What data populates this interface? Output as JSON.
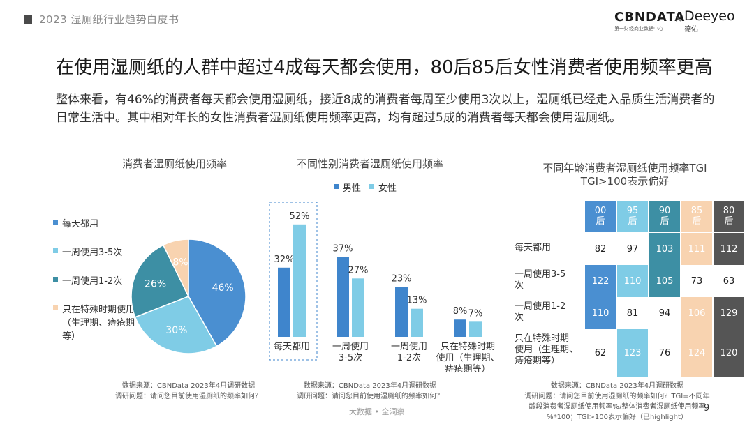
{
  "header": {
    "doc_title": "2023 湿厕纸行业趋势白皮书",
    "logo_cbn": "CBNDATA",
    "logo_cbn_sub": "第一财经商业数据中心",
    "logo_x": "×",
    "logo_dee": "Deeyeo",
    "logo_dee_sub": "德佑"
  },
  "title": "在使用湿厕纸的人群中超过4成每天都会使用，80后85后女性消费者使用频率更高",
  "description": "整体来看，有46%的消费者每天都会使用湿厕纸，接近8成的消费者每周至少使用3次以上，湿厕纸已经走入品质生活消费者的日常生活中。其中相对年长的女性消费者湿厕纸使用频率更高，均有超过5成的消费者每天都会使用湿厕纸。",
  "chart_data": [
    {
      "type": "pie",
      "title": "消费者湿厕纸使用频率",
      "categories": [
        "每天都用",
        "一周使用3-5次",
        "一周使用1-2次",
        "只在特殊时期使用（生理期、痔疮期等）"
      ],
      "values": [
        46,
        30,
        26,
        8
      ],
      "value_labels": [
        "46%",
        "30%",
        "26%",
        "8%"
      ],
      "colors": [
        "#4a8fd1",
        "#7fcce6",
        "#3d8fa4",
        "#f8d3b0"
      ]
    },
    {
      "type": "bar",
      "title": "不同性别消费者湿厕纸使用频率",
      "categories": [
        "每天都用",
        "一周使用3-5次",
        "一周使用1-2次",
        "只在特殊时期使用（生理期、痔疮期等）"
      ],
      "category_labels": [
        [
          "每天都用"
        ],
        [
          "一周使用",
          "3-5次"
        ],
        [
          "一周使用",
          "1-2次"
        ],
        [
          "只在特殊时期",
          "使用（生理期、",
          "痔疮期等）"
        ]
      ],
      "series": [
        {
          "name": "男性",
          "values": [
            32,
            37,
            23,
            8
          ],
          "labels": [
            "32%",
            "37%",
            "23%",
            "8%"
          ],
          "color": "#3f85cc"
        },
        {
          "name": "女性",
          "values": [
            52,
            27,
            13,
            7
          ],
          "labels": [
            "52%",
            "27%",
            "13%",
            "7%"
          ],
          "color": "#7fcce6"
        }
      ]
    },
    {
      "type": "heatmap",
      "title": "不同年龄消费者湿厕纸使用频率TGI",
      "subtitle": "TGI>100表示偏好",
      "columns": [
        "00后",
        "95后",
        "90后",
        "85后",
        "80后"
      ],
      "column_lines": [
        [
          "00",
          "后"
        ],
        [
          "95",
          "后"
        ],
        [
          "90",
          "后"
        ],
        [
          "85",
          "后"
        ],
        [
          "80",
          "后"
        ]
      ],
      "column_colors": [
        "#4a8fd1",
        "#7fcce6",
        "#3d8fa4",
        "#f8d3b0",
        "#555555"
      ],
      "rows": [
        "每天都用",
        "一周使用3-5次",
        "一周使用1-2次",
        "只在特殊时期使用（生理期、痔疮期等）"
      ],
      "row_lines": [
        [
          "每天都用"
        ],
        [
          "一周使用3-5",
          "次"
        ],
        [
          "一周使用1-2",
          "次"
        ],
        [
          "只在特殊时期",
          "使用（生理期、",
          "痔疮期等）"
        ]
      ],
      "values": [
        [
          82,
          97,
          103,
          111,
          112
        ],
        [
          122,
          110,
          105,
          73,
          63
        ],
        [
          110,
          81,
          94,
          106,
          129
        ],
        [
          62,
          123,
          76,
          124,
          120
        ]
      ]
    }
  ],
  "sources": {
    "left": [
      "数据来源：CBNData 2023年4月调研数据",
      "调研问题：请问您目前使用湿厕纸的频率如何？"
    ],
    "middle": [
      "数据来源：CBNData 2023年4月调研数据",
      "调研问题：请问您目前使用湿厕纸的频率如何？"
    ],
    "right": [
      "数据来源：CBNData 2023年4月调研数据",
      "调研问题：请问您目前使用湿厕纸的频率如何？TGI=不同年",
      "龄段消费者湿厕纸使用频率%/整体消费者湿厕纸使用频率",
      "%*100；TGI>100表示偏好（已highlight）"
    ]
  },
  "brand": "大数据 • 全洞察",
  "page_number": "9"
}
